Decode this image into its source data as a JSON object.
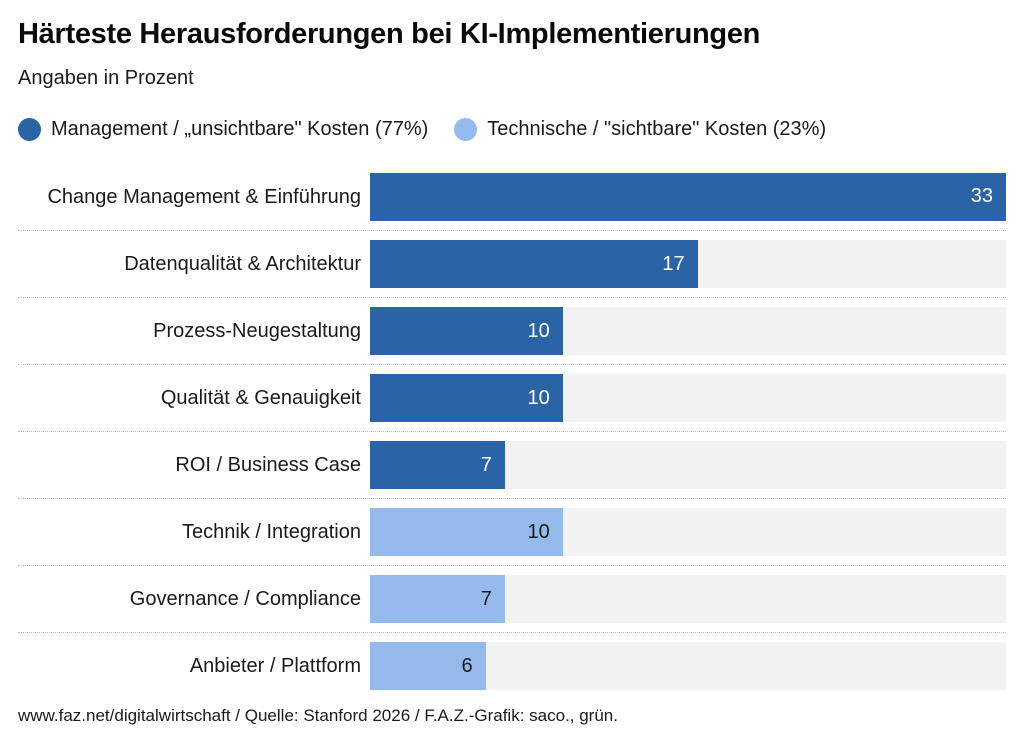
{
  "page": {
    "title": "Härteste Herausforderungen bei KI-Implementierungen",
    "subtitle": "Angaben in Prozent",
    "footer": "www.faz.net/digitalwirtschaft / Quelle: Stanford 2026 / F.A.Z.-Grafik: saco., grün."
  },
  "colors": {
    "management": "#2B64A6",
    "technical": "#93BAEB",
    "track": "#F2F2F2",
    "separator": "#BDBDBD",
    "text": "#1A1A1A",
    "value_on_management": "#FFFFFF",
    "value_on_technical": "#1A1A1A"
  },
  "legend": [
    {
      "id": "management",
      "label": "Management / „unsichtbare\" Kosten (77%)",
      "color": "#2B64A6"
    },
    {
      "id": "technical",
      "label": "Technische / \"sichtbare\" Kosten (23%)",
      "color": "#93BAEB"
    }
  ],
  "chart_data": {
    "type": "bar",
    "orientation": "horizontal",
    "title": "Härteste Herausforderungen bei KI-Implementierungen",
    "subtitle": "Angaben in Prozent",
    "value_unit": "percent",
    "xlim": [
      0,
      33
    ],
    "grid": false,
    "legend_position": "top",
    "value_labels": "inside-right",
    "categories": [
      "Change Management & Einführung",
      "Datenqualität & Architektur",
      "Prozess-Neugestaltung",
      "Qualität & Genauigkeit",
      "ROI / Business Case",
      "Technik / Integration",
      "Governance / Compliance",
      "Anbieter / Plattform"
    ],
    "values": [
      33,
      17,
      10,
      10,
      7,
      10,
      7,
      6
    ],
    "series_membership": [
      "management",
      "management",
      "management",
      "management",
      "management",
      "technical",
      "technical",
      "technical"
    ],
    "series": [
      {
        "id": "management",
        "name": "Management / „unsichtbare\" Kosten",
        "share_percent": 77
      },
      {
        "id": "technical",
        "name": "Technische / \"sichtbare\" Kosten",
        "share_percent": 23
      }
    ]
  }
}
